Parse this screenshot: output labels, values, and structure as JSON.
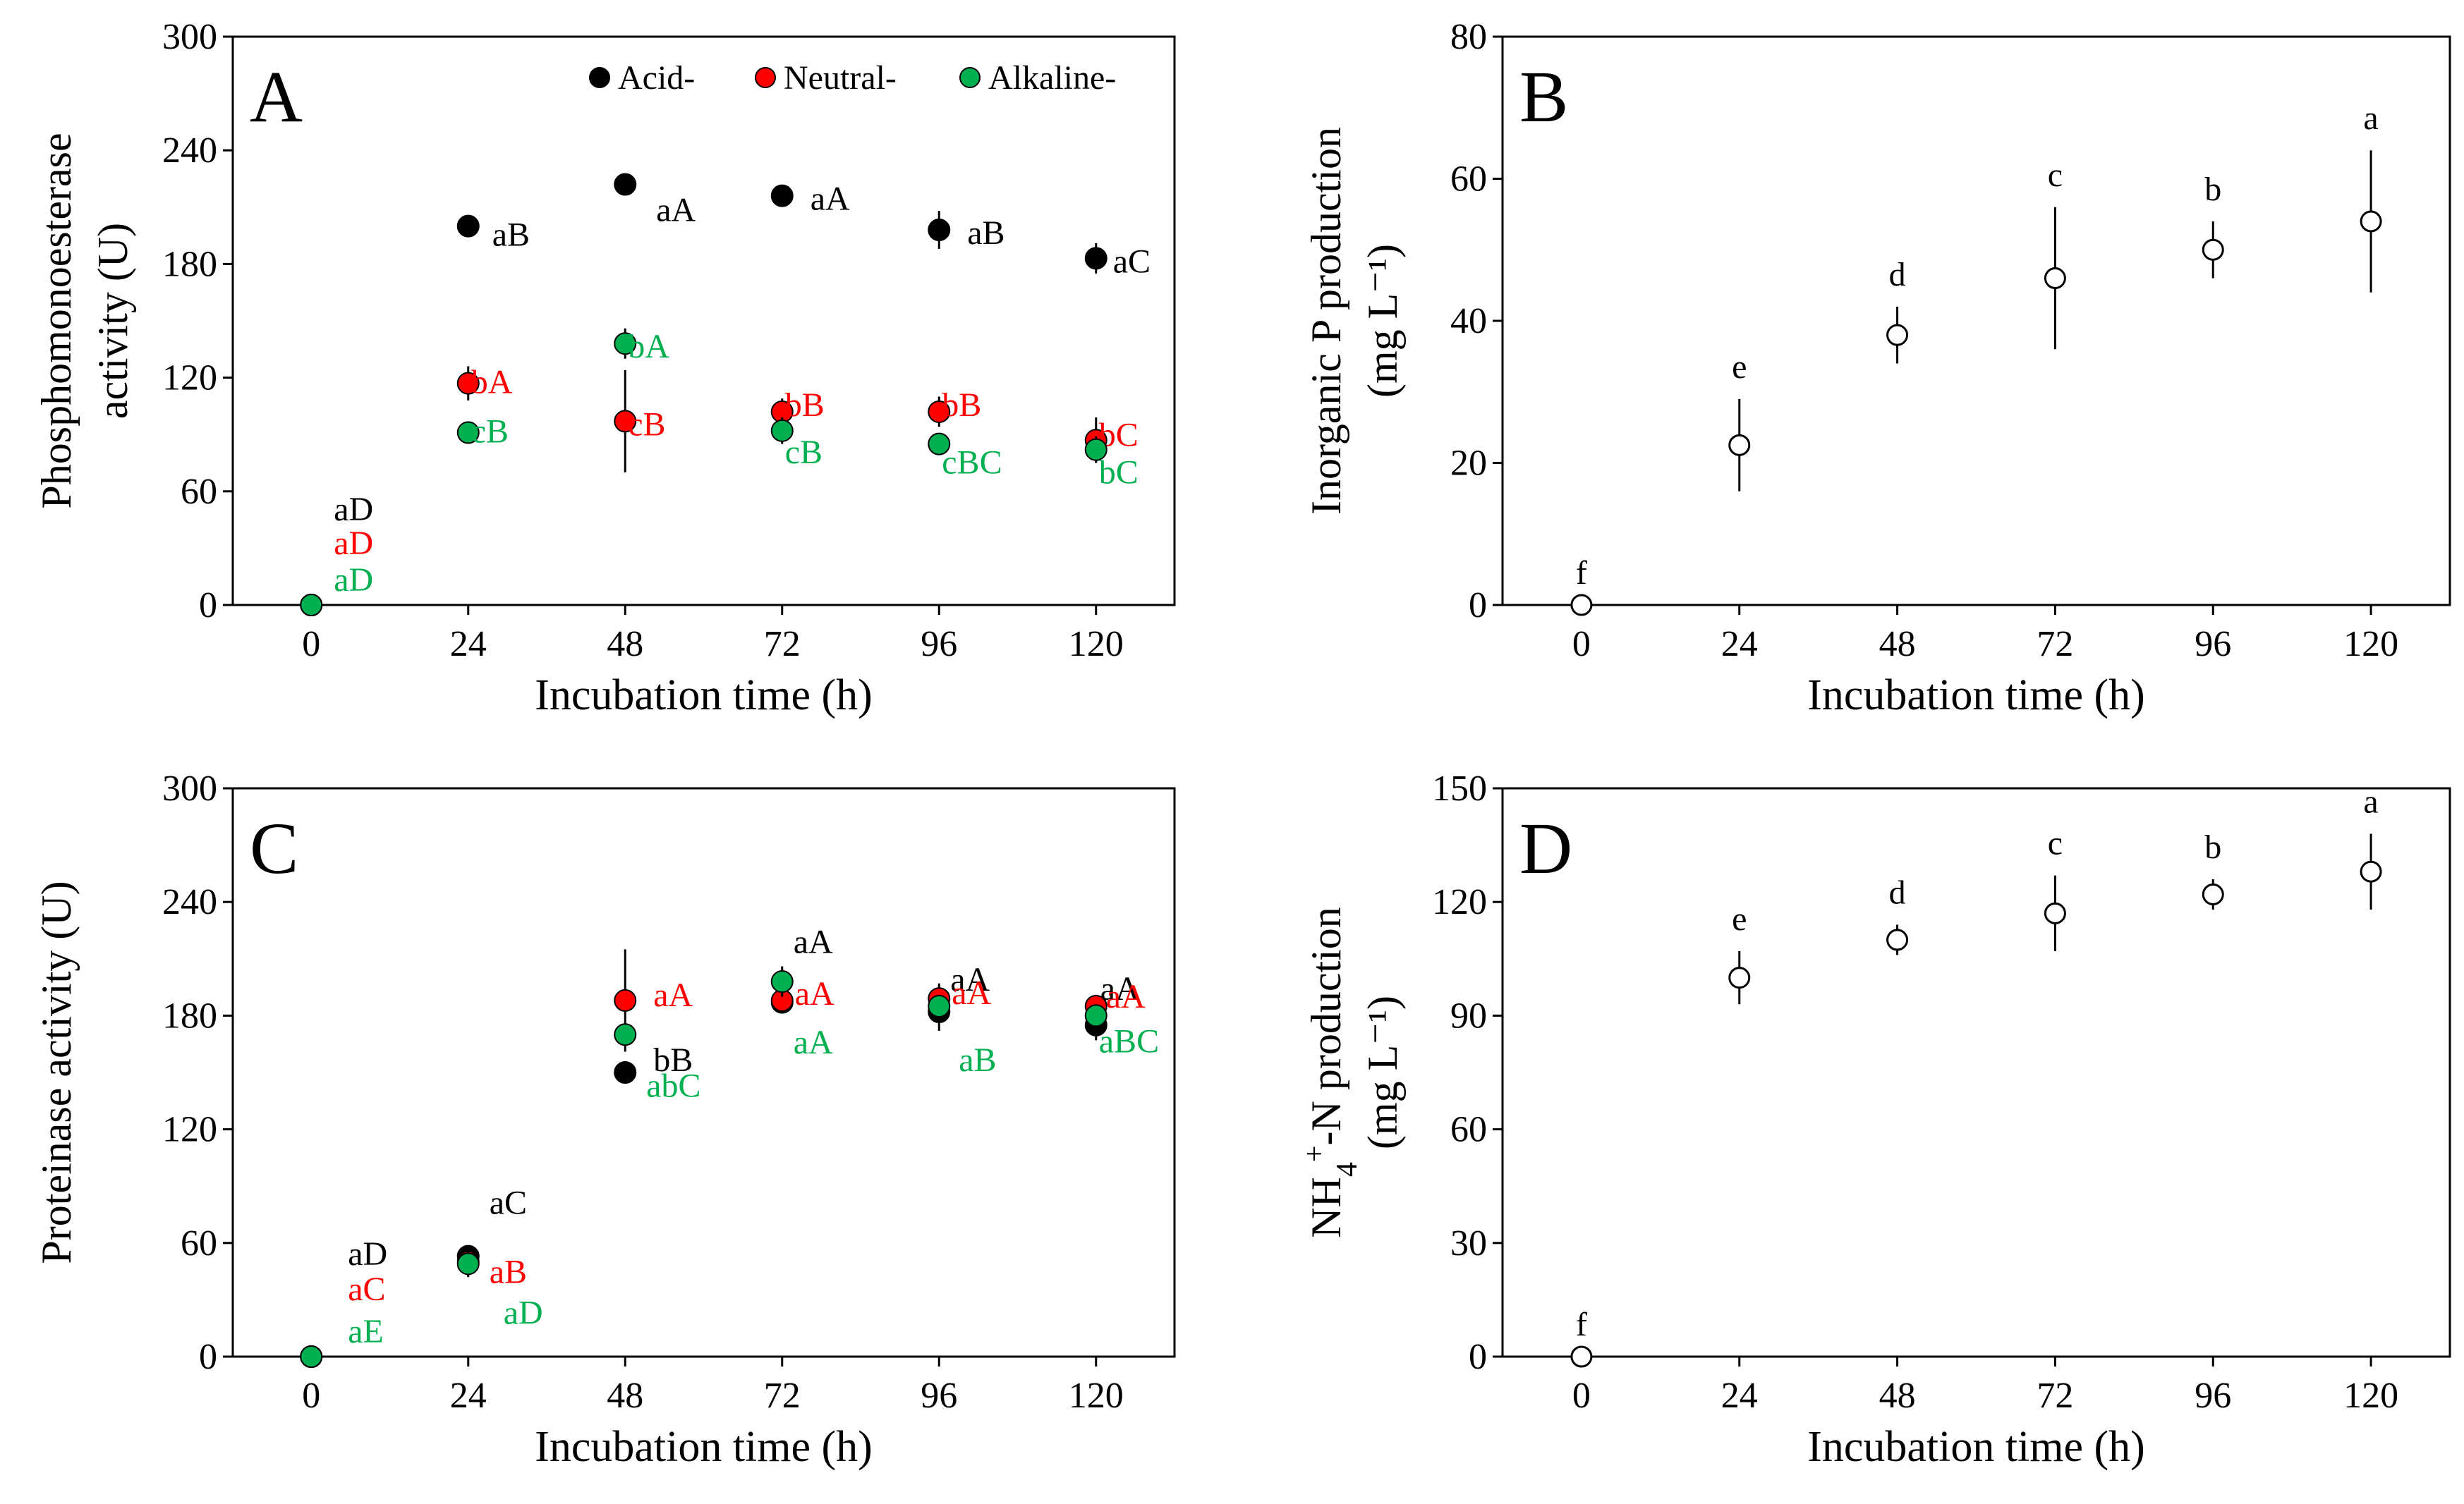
{
  "colors": {
    "acid": "#000000",
    "neutral": "#ff0000",
    "alkaline": "#00b050",
    "open": "#ffffff"
  },
  "chart_data": [
    {
      "id": "A",
      "type": "scatter",
      "panel_label": "A",
      "xlabel": "Incubation time (h)",
      "ylabel_lines": [
        "Phosphomonoesterase",
        "activity (U)"
      ],
      "x": [
        0,
        24,
        48,
        72,
        96,
        120
      ],
      "xticks": [
        "0",
        "24",
        "48",
        "72",
        "96",
        "120"
      ],
      "yticks": [
        "0",
        "60",
        "120",
        "180",
        "240",
        "300"
      ],
      "ylim": [
        0,
        300
      ],
      "xlim": [
        -12,
        132
      ],
      "legend": [
        "Acid-",
        "Neutral-",
        "Alkaline-"
      ],
      "series": [
        {
          "name": "Acid-",
          "color": "acid",
          "values": [
            0,
            200,
            222,
            216,
            198,
            183
          ],
          "err": [
            0,
            3,
            4,
            3,
            10,
            8
          ],
          "labels": [
            "aD",
            "aB",
            "aA",
            "aA",
            "aB",
            "aC"
          ]
        },
        {
          "name": "Neutral-",
          "color": "neutral",
          "values": [
            0,
            117,
            97,
            102,
            102,
            87
          ],
          "err": [
            0,
            9,
            27,
            7,
            8,
            12
          ],
          "labels": [
            "aD",
            "bA",
            "cB",
            "bB",
            "bB",
            "bC"
          ]
        },
        {
          "name": "Alkaline-",
          "color": "alkaline",
          "values": [
            0,
            91,
            138,
            92,
            85,
            82
          ],
          "err": [
            0,
            3,
            8,
            7,
            4,
            7
          ],
          "labels": [
            "aD",
            "cB",
            "bA",
            "cB",
            "cBC",
            "bC"
          ]
        }
      ]
    },
    {
      "id": "B",
      "type": "scatter",
      "panel_label": "B",
      "xlabel": "Incubation time (h)",
      "ylabel_lines": [
        "Inorganic P production",
        "(mg L⁻¹)"
      ],
      "x": [
        0,
        24,
        48,
        72,
        96,
        120
      ],
      "xticks": [
        "0",
        "24",
        "48",
        "72",
        "96",
        "120"
      ],
      "yticks": [
        "0",
        "20",
        "40",
        "60",
        "80"
      ],
      "ylim": [
        0,
        80
      ],
      "xlim": [
        -12,
        132
      ],
      "series": [
        {
          "name": "Inorganic P",
          "color": "open",
          "values": [
            0,
            22.5,
            38,
            46,
            50,
            54
          ],
          "err": [
            0,
            6.5,
            4,
            10,
            4,
            10
          ],
          "labels": [
            "f",
            "e",
            "d",
            "c",
            "b",
            "a"
          ]
        }
      ]
    },
    {
      "id": "C",
      "type": "scatter",
      "panel_label": "C",
      "xlabel": "Incubation time (h)",
      "ylabel_lines": [
        "Proteinase activity (U)"
      ],
      "x": [
        0,
        24,
        48,
        72,
        96,
        120
      ],
      "xticks": [
        "0",
        "24",
        "48",
        "72",
        "96",
        "120"
      ],
      "yticks": [
        "0",
        "60",
        "120",
        "180",
        "240",
        "300"
      ],
      "ylim": [
        0,
        300
      ],
      "xlim": [
        -12,
        132
      ],
      "series": [
        {
          "name": "Acid-",
          "color": "acid",
          "values": [
            0,
            53,
            150,
            187,
            182,
            175
          ],
          "err": [
            0,
            4,
            4,
            4,
            10,
            8
          ],
          "labels": [
            "aD",
            "aC",
            "bB",
            "aA",
            "aA",
            "aA"
          ]
        },
        {
          "name": "Neutral-",
          "color": "neutral",
          "values": [
            0,
            50,
            188,
            188,
            189,
            185
          ],
          "err": [
            0,
            4,
            27,
            4,
            8,
            6
          ],
          "labels": [
            "aC",
            "aB",
            "aA",
            "aA",
            "aA",
            "aA"
          ]
        },
        {
          "name": "Alkaline-",
          "color": "alkaline",
          "values": [
            0,
            49,
            170,
            198,
            185,
            180
          ],
          "err": [
            0,
            7,
            6,
            8,
            5,
            5
          ],
          "labels": [
            "aE",
            "aD",
            "abC",
            "aA",
            "aB",
            "aBC"
          ]
        }
      ]
    },
    {
      "id": "D",
      "type": "scatter",
      "panel_label": "D",
      "xlabel": "Incubation time (h)",
      "ylabel_main": "NH",
      "ylabel_sub": "4",
      "ylabel_sup": "+",
      "ylabel_rest": "-N production",
      "ylabel_line2": "(mg L⁻¹)",
      "x": [
        0,
        24,
        48,
        72,
        96,
        120
      ],
      "xticks": [
        "0",
        "24",
        "48",
        "72",
        "96",
        "120"
      ],
      "yticks": [
        "0",
        "30",
        "60",
        "90",
        "120",
        "150"
      ],
      "ylim": [
        0,
        150
      ],
      "xlim": [
        -12,
        132
      ],
      "series": [
        {
          "name": "NH4+-N",
          "color": "open",
          "values": [
            0,
            100,
            110,
            117,
            122,
            128
          ],
          "err": [
            0,
            7,
            4,
            10,
            4,
            10
          ],
          "labels": [
            "f",
            "e",
            "d",
            "c",
            "b",
            "a"
          ]
        }
      ]
    }
  ]
}
